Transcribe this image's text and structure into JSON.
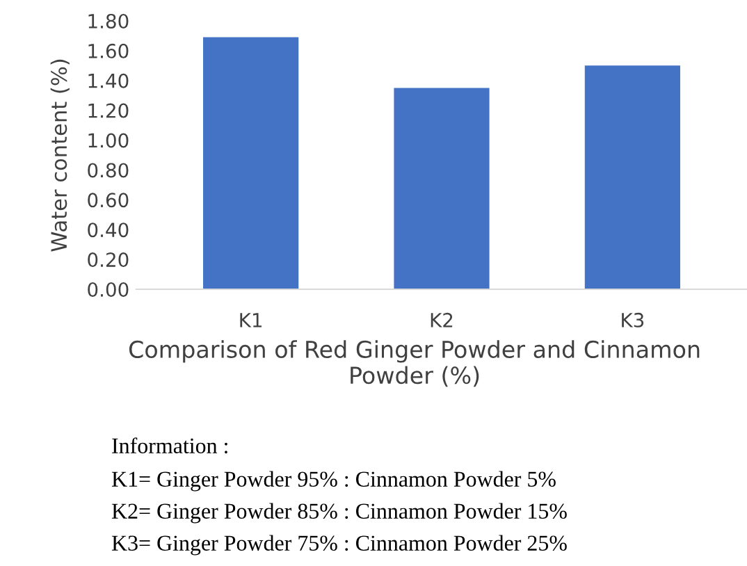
{
  "chart_data": {
    "type": "bar",
    "categories": [
      "K1",
      "K2",
      "K3"
    ],
    "values": [
      1.69,
      1.35,
      1.5
    ],
    "color": "#4472c4",
    "ylabel": "Water content (%)",
    "xlabel": "Comparison of Red Ginger Powder and Cinnamon Powder (%)",
    "ylim": [
      0,
      1.8
    ],
    "yticks": [
      {
        "value": 0,
        "label": "0.00"
      },
      {
        "value": 0.2,
        "label": "0.20"
      },
      {
        "value": 0.4,
        "label": "0.40"
      },
      {
        "value": 0.6,
        "label": "0.60"
      },
      {
        "value": 0.8,
        "label": "0.80"
      },
      {
        "value": 1.0,
        "label": "1.00"
      },
      {
        "value": 1.2,
        "label": "1.20"
      },
      {
        "value": 1.4,
        "label": "1.40"
      },
      {
        "value": 1.6,
        "label": "1.60"
      },
      {
        "value": 1.8,
        "label": "1.80"
      }
    ],
    "grid": false,
    "annotations": [
      "Information :",
      "K1= Ginger Powder 95% : Cinnamon Powder 5%",
      "K2= Ginger Powder 85% : Cinnamon Powder 15%",
      "K3= Ginger Powder 75% : Cinnamon Powder 25%"
    ]
  }
}
